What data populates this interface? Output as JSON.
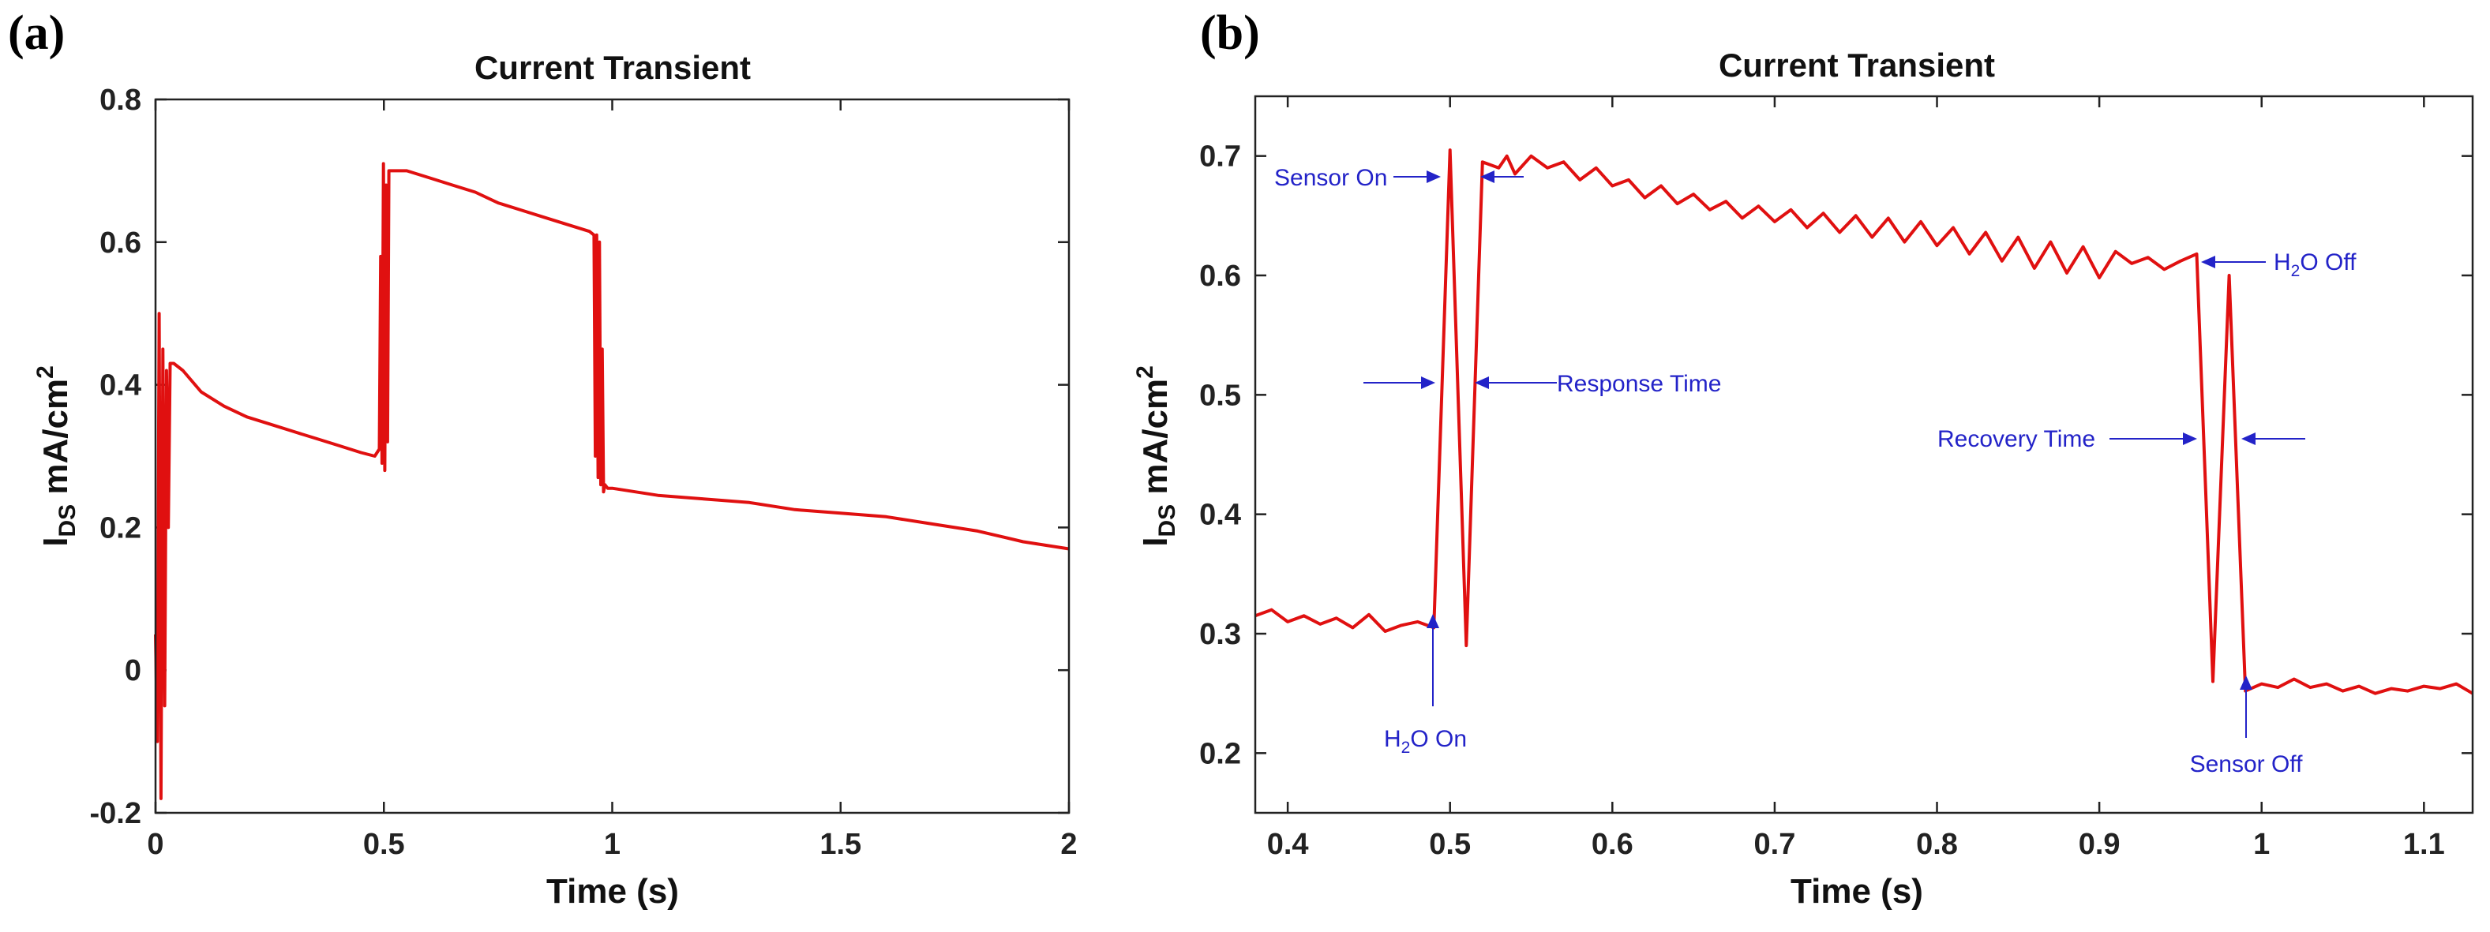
{
  "colors": {
    "series": "#e01010",
    "annotation": "#2323c8",
    "axis": "#222222"
  },
  "chart_data": [
    {
      "panel": "(a)",
      "type": "line",
      "title": "Current Transient",
      "xlabel": "Time (s)",
      "ylabel_main": "I",
      "ylabel_sub": "DS",
      "ylabel_unit": " mA/cm",
      "ylabel_sup": "2",
      "xlim": [
        0,
        2
      ],
      "ylim": [
        -0.2,
        0.8
      ],
      "xticks": [
        0,
        0.5,
        1,
        1.5,
        2
      ],
      "xtick_labels": [
        "0",
        "0.5",
        "1",
        "1.5",
        "2"
      ],
      "yticks": [
        -0.2,
        0,
        0.2,
        0.4,
        0.6,
        0.8
      ],
      "ytick_labels": [
        "-0.2",
        "0",
        "0.2",
        "0.4",
        "0.6",
        "0.8"
      ],
      "series": [
        {
          "name": "I_DS",
          "x": [
            0,
            0.004,
            0.008,
            0.012,
            0.016,
            0.02,
            0.024,
            0.028,
            0.032,
            0.04,
            0.06,
            0.1,
            0.15,
            0.2,
            0.25,
            0.3,
            0.35,
            0.4,
            0.45,
            0.48,
            0.49,
            0.493,
            0.496,
            0.499,
            0.502,
            0.505,
            0.508,
            0.511,
            0.52,
            0.55,
            0.6,
            0.65,
            0.7,
            0.75,
            0.8,
            0.85,
            0.9,
            0.95,
            0.96,
            0.963,
            0.966,
            0.969,
            0.972,
            0.975,
            0.978,
            0.981,
            0.984,
            0.99,
            1.0,
            1.1,
            1.2,
            1.3,
            1.4,
            1.5,
            1.6,
            1.7,
            1.8,
            1.9,
            1.95,
            2.0
          ],
          "y": [
            0.05,
            -0.1,
            0.5,
            -0.18,
            0.45,
            -0.05,
            0.42,
            0.2,
            0.43,
            0.43,
            0.42,
            0.39,
            0.37,
            0.355,
            0.345,
            0.335,
            0.325,
            0.315,
            0.305,
            0.3,
            0.31,
            0.58,
            0.29,
            0.71,
            0.28,
            0.68,
            0.32,
            0.7,
            0.7,
            0.7,
            0.69,
            0.68,
            0.67,
            0.655,
            0.645,
            0.635,
            0.625,
            0.615,
            0.61,
            0.3,
            0.61,
            0.27,
            0.6,
            0.26,
            0.45,
            0.25,
            0.26,
            0.255,
            0.255,
            0.245,
            0.24,
            0.235,
            0.225,
            0.22,
            0.215,
            0.205,
            0.195,
            0.18,
            0.175,
            0.17
          ]
        }
      ]
    },
    {
      "panel": "(b)",
      "type": "line",
      "title": "Current Transient",
      "xlabel": "Time (s)",
      "ylabel_main": "I",
      "ylabel_sub": "DS",
      "ylabel_unit": " mA/cm",
      "ylabel_sup": "2",
      "xlim": [
        0.38,
        1.13
      ],
      "ylim": [
        0.15,
        0.75
      ],
      "xticks": [
        0.4,
        0.5,
        0.6,
        0.7,
        0.8,
        0.9,
        1.0,
        1.1
      ],
      "xtick_labels": [
        "0.4",
        "0.5",
        "0.6",
        "0.7",
        "0.8",
        "0.9",
        "1",
        "1.1"
      ],
      "yticks": [
        0.2,
        0.3,
        0.4,
        0.5,
        0.6,
        0.7
      ],
      "ytick_labels": [
        "0.2",
        "0.3",
        "0.4",
        "0.5",
        "0.6",
        "0.7"
      ],
      "series": [
        {
          "name": "I_DS",
          "x": [
            0.38,
            0.39,
            0.4,
            0.41,
            0.42,
            0.43,
            0.44,
            0.45,
            0.46,
            0.47,
            0.48,
            0.49,
            0.5,
            0.51,
            0.52,
            0.53,
            0.535,
            0.54,
            0.55,
            0.56,
            0.57,
            0.58,
            0.59,
            0.6,
            0.61,
            0.62,
            0.63,
            0.64,
            0.65,
            0.66,
            0.67,
            0.68,
            0.69,
            0.7,
            0.71,
            0.72,
            0.73,
            0.74,
            0.75,
            0.76,
            0.77,
            0.78,
            0.79,
            0.8,
            0.81,
            0.82,
            0.83,
            0.84,
            0.85,
            0.86,
            0.87,
            0.88,
            0.89,
            0.9,
            0.91,
            0.92,
            0.93,
            0.94,
            0.95,
            0.96,
            0.97,
            0.98,
            0.99,
            1.0,
            1.01,
            1.02,
            1.03,
            1.04,
            1.05,
            1.06,
            1.07,
            1.08,
            1.09,
            1.1,
            1.11,
            1.12,
            1.13
          ],
          "y": [
            0.315,
            0.32,
            0.31,
            0.315,
            0.308,
            0.313,
            0.305,
            0.316,
            0.302,
            0.307,
            0.31,
            0.305,
            0.705,
            0.29,
            0.695,
            0.69,
            0.7,
            0.685,
            0.7,
            0.69,
            0.695,
            0.68,
            0.69,
            0.675,
            0.68,
            0.665,
            0.675,
            0.66,
            0.668,
            0.655,
            0.662,
            0.648,
            0.658,
            0.645,
            0.655,
            0.64,
            0.652,
            0.636,
            0.65,
            0.632,
            0.648,
            0.628,
            0.645,
            0.625,
            0.64,
            0.618,
            0.636,
            0.612,
            0.632,
            0.606,
            0.628,
            0.602,
            0.624,
            0.598,
            0.62,
            0.61,
            0.615,
            0.605,
            0.612,
            0.618,
            0.26,
            0.6,
            0.252,
            0.258,
            0.255,
            0.262,
            0.255,
            0.258,
            0.252,
            0.256,
            0.25,
            0.254,
            0.252,
            0.256,
            0.254,
            0.258,
            0.25
          ]
        }
      ],
      "annotations": {
        "sensor_on": "Sensor On",
        "response_time": "Response Time",
        "h2o_on_main": "H",
        "h2o_on_sub": "2",
        "h2o_on_rest": "O On",
        "h2o_off_main": "H",
        "h2o_off_sub": "2",
        "h2o_off_rest": "O Off",
        "recovery_time": "Recovery Time",
        "sensor_off": "Sensor Off"
      }
    }
  ]
}
